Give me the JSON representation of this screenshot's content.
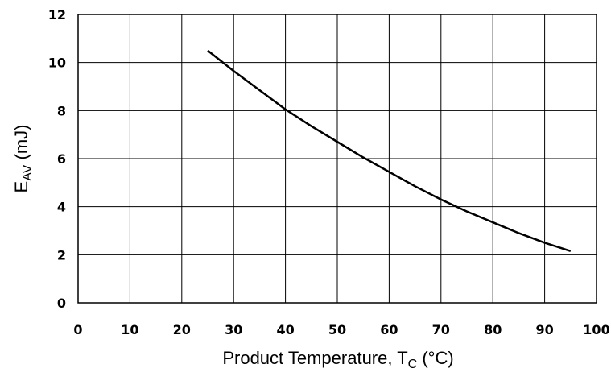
{
  "chart_data": {
    "type": "line",
    "title": "",
    "xlabel": {
      "main": "Product Temperature, T",
      "sub": "C",
      "unit": " (°C)"
    },
    "ylabel": {
      "main": "E",
      "sub": "AV",
      "unit": " (mJ)"
    },
    "xlim": [
      0,
      100
    ],
    "ylim": [
      0,
      12
    ],
    "xticks": [
      0,
      10,
      20,
      30,
      40,
      50,
      60,
      70,
      80,
      90,
      100
    ],
    "yticks": [
      0,
      2,
      4,
      6,
      8,
      10,
      12
    ],
    "xtick_labels": [
      "0",
      "10",
      "20",
      "30",
      "40",
      "50",
      "60",
      "70",
      "80",
      "90",
      "100"
    ],
    "ytick_labels": [
      "0",
      "2",
      "4",
      "6",
      "8",
      "10",
      "12"
    ],
    "grid": true,
    "series": [
      {
        "color": "#000000",
        "x": [
          25,
          30,
          35,
          40,
          45,
          50,
          55,
          60,
          65,
          70,
          75,
          80,
          85,
          90,
          95
        ],
        "y": [
          10.5,
          9.65,
          8.85,
          8.05,
          7.35,
          6.7,
          6.05,
          5.45,
          4.85,
          4.3,
          3.8,
          3.35,
          2.9,
          2.5,
          2.15
        ]
      }
    ]
  }
}
